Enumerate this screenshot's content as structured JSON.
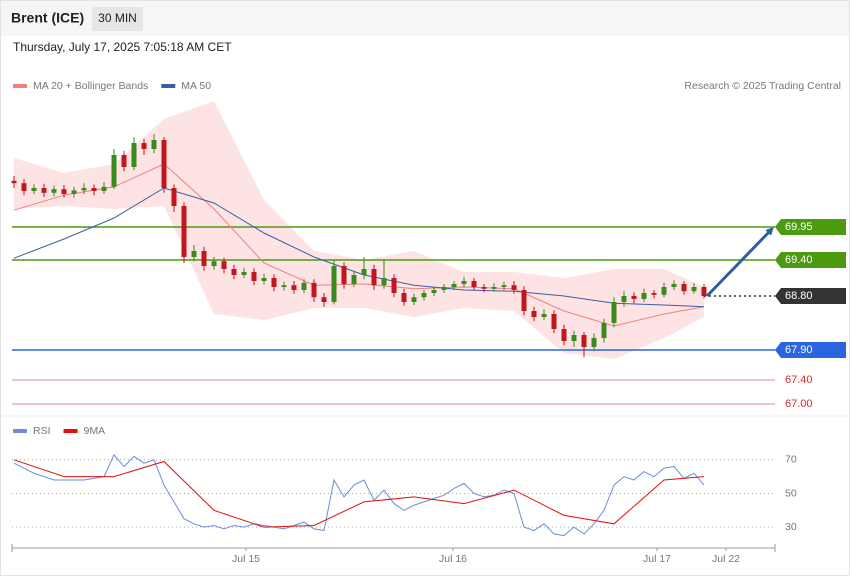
{
  "header": {
    "symbol": "Brent (ICE)",
    "interval": "30 MIN",
    "timestamp": "Thursday, July 17, 2025 7:05:18 AM CET",
    "credit": "Research © 2025 Trading Central"
  },
  "chart_data": [
    {
      "type": "candlestick",
      "xlim": [
        -0.2,
        76.1
      ],
      "ylim": [
        66.8,
        72.1
      ],
      "up_color": "#3a8a1e",
      "down_color": "#c0171e",
      "x": [
        0,
        1,
        2,
        3,
        4,
        5,
        6,
        7,
        8,
        9,
        10,
        11,
        12,
        13,
        14,
        15,
        16,
        17,
        18,
        19,
        20,
        21,
        22,
        23,
        24,
        25,
        26,
        27,
        28,
        29,
        30,
        31,
        32,
        33,
        34,
        35,
        36,
        37,
        38,
        39,
        40,
        41,
        42,
        43,
        44,
        45,
        46,
        47,
        48,
        49,
        50,
        51,
        52,
        53,
        54,
        55,
        56,
        57,
        58,
        59,
        60,
        61,
        62,
        63,
        64,
        65,
        66,
        67,
        68,
        69
      ],
      "open": [
        70.72,
        70.68,
        70.55,
        70.6,
        70.52,
        70.58,
        70.5,
        70.56,
        70.6,
        70.55,
        70.62,
        71.15,
        70.95,
        71.35,
        71.25,
        71.4,
        70.6,
        70.3,
        69.45,
        69.55,
        69.3,
        69.38,
        69.25,
        69.15,
        69.2,
        69.05,
        69.1,
        68.95,
        68.98,
        68.9,
        69.02,
        68.78,
        68.7,
        69.3,
        69.0,
        69.15,
        69.25,
        68.98,
        69.1,
        68.85,
        68.7,
        68.78,
        68.85,
        68.9,
        68.95,
        69.0,
        69.05,
        68.95,
        68.92,
        68.95,
        68.98,
        68.9,
        68.55,
        68.45,
        68.5,
        68.25,
        68.05,
        68.15,
        67.95,
        68.1,
        68.35,
        68.7,
        68.8,
        68.75,
        68.85,
        68.82,
        68.95,
        69.0,
        68.88,
        68.95
      ],
      "high": [
        70.8,
        70.75,
        70.66,
        70.67,
        70.64,
        70.65,
        70.62,
        70.68,
        70.66,
        70.7,
        71.25,
        71.22,
        71.45,
        71.42,
        71.5,
        71.45,
        70.66,
        70.36,
        69.65,
        69.62,
        69.45,
        69.44,
        69.32,
        69.27,
        69.26,
        69.17,
        69.16,
        69.04,
        69.05,
        69.08,
        69.08,
        68.85,
        69.4,
        69.36,
        69.22,
        69.45,
        69.32,
        69.4,
        69.16,
        68.92,
        68.84,
        68.9,
        68.95,
        69.0,
        69.05,
        69.12,
        69.1,
        69.0,
        69.01,
        69.04,
        69.05,
        68.96,
        68.62,
        68.58,
        68.56,
        68.32,
        68.22,
        68.2,
        68.18,
        68.42,
        68.78,
        68.88,
        68.86,
        68.92,
        68.9,
        69.02,
        69.06,
        69.05,
        69.02,
        69.0
      ],
      "low": [
        70.6,
        70.48,
        70.5,
        70.45,
        70.46,
        70.44,
        70.44,
        70.5,
        70.48,
        70.5,
        70.58,
        70.88,
        70.9,
        71.15,
        71.18,
        70.52,
        70.2,
        69.35,
        69.38,
        69.22,
        69.24,
        69.18,
        69.08,
        69.1,
        68.98,
        68.99,
        68.88,
        68.89,
        68.84,
        68.85,
        68.7,
        68.62,
        68.66,
        68.92,
        68.95,
        69.08,
        68.9,
        68.92,
        68.78,
        68.64,
        68.65,
        68.72,
        68.8,
        68.85,
        68.9,
        68.94,
        68.9,
        68.86,
        68.87,
        68.9,
        68.84,
        68.48,
        68.38,
        68.4,
        68.18,
        67.98,
        67.95,
        67.78,
        67.88,
        68.02,
        68.28,
        68.62,
        68.68,
        68.7,
        68.76,
        68.78,
        68.9,
        68.82,
        68.84,
        68.76
      ],
      "close": [
        70.68,
        70.55,
        70.6,
        70.52,
        70.58,
        70.5,
        70.56,
        70.6,
        70.55,
        70.62,
        71.15,
        70.95,
        71.35,
        71.25,
        71.4,
        70.6,
        70.3,
        69.45,
        69.55,
        69.3,
        69.38,
        69.25,
        69.15,
        69.2,
        69.05,
        69.1,
        68.95,
        68.98,
        68.9,
        69.02,
        68.78,
        68.7,
        69.3,
        69.0,
        69.15,
        69.25,
        68.98,
        69.1,
        68.85,
        68.7,
        68.78,
        68.85,
        68.9,
        68.95,
        69.0,
        69.05,
        68.95,
        68.92,
        68.95,
        68.98,
        68.9,
        68.55,
        68.45,
        68.5,
        68.25,
        68.05,
        68.15,
        67.95,
        68.1,
        68.35,
        68.7,
        68.8,
        68.75,
        68.85,
        68.82,
        68.95,
        69.0,
        68.88,
        68.95,
        68.8
      ],
      "series": [
        {
          "name": "MA 20 + Bollinger Bands",
          "color": "#f08080",
          "x": [
            0,
            5,
            10,
            15,
            20,
            25,
            30,
            35,
            40,
            45,
            50,
            55,
            60,
            65,
            69
          ],
          "values": [
            70.23,
            70.48,
            70.62,
            71.0,
            70.25,
            69.35,
            68.98,
            69.0,
            68.92,
            68.95,
            68.92,
            68.55,
            68.3,
            68.5,
            68.62
          ]
        },
        {
          "name": "MA 50",
          "color": "#3a5fa0",
          "x": [
            0,
            5,
            10,
            15,
            20,
            25,
            30,
            35,
            40,
            45,
            50,
            55,
            60,
            65,
            69
          ],
          "values": [
            69.43,
            69.75,
            70.1,
            70.6,
            70.35,
            69.85,
            69.45,
            69.15,
            68.98,
            68.9,
            68.88,
            68.8,
            68.68,
            68.65,
            68.62
          ]
        }
      ],
      "bands": {
        "color": "#fde3e3",
        "x": [
          0,
          5,
          10,
          15,
          20,
          25,
          30,
          35,
          40,
          45,
          50,
          55,
          60,
          65,
          69
        ],
        "upper": [
          71.1,
          70.85,
          71.0,
          71.75,
          72.05,
          70.4,
          69.55,
          69.4,
          69.55,
          69.2,
          69.2,
          69.1,
          69.25,
          69.25,
          68.95
        ],
        "lower": [
          70.25,
          70.3,
          70.25,
          70.3,
          68.5,
          68.4,
          68.6,
          68.6,
          68.45,
          68.6,
          68.55,
          67.85,
          67.75,
          68.1,
          68.45
        ]
      },
      "levels": [
        {
          "value": 69.95,
          "label": "69.95",
          "color": "#4c9a0f",
          "boxed": true,
          "style": "solid"
        },
        {
          "value": 69.4,
          "label": "69.40",
          "color": "#4c9a0f",
          "boxed": true,
          "style": "solid"
        },
        {
          "value": 68.8,
          "label": "68.80",
          "color": "#333333",
          "boxed": true,
          "style": "dotted"
        },
        {
          "value": 67.9,
          "label": "67.90",
          "color": "#2b66e0",
          "boxed": true,
          "style": "solid"
        },
        {
          "value": 67.4,
          "label": "67.40",
          "color": "#d03030",
          "boxed": false,
          "style": "solid"
        },
        {
          "value": 67.0,
          "label": "67.00",
          "color": "#d03030",
          "boxed": false,
          "style": "solid"
        }
      ]
    },
    {
      "type": "line",
      "xlim": [
        -0.2,
        76.1
      ],
      "ylim": [
        20,
        82
      ],
      "yticks": [
        70,
        50,
        30
      ],
      "xticks": [
        {
          "value": 23.2,
          "label": "Jul 15"
        },
        {
          "value": 43.9,
          "label": "Jul 16"
        },
        {
          "value": 64.3,
          "label": "Jul 17"
        },
        {
          "value": 71.2,
          "label": "Jul 22"
        }
      ],
      "series": [
        {
          "name": "RSI",
          "color": "#6a8fd8",
          "x": [
            0,
            1,
            2,
            3,
            4,
            5,
            6,
            7,
            8,
            9,
            10,
            11,
            12,
            13,
            14,
            15,
            16,
            17,
            18,
            19,
            20,
            21,
            22,
            23,
            24,
            25,
            26,
            27,
            28,
            29,
            30,
            31,
            32,
            33,
            34,
            35,
            36,
            37,
            38,
            39,
            40,
            41,
            42,
            43,
            44,
            45,
            46,
            47,
            48,
            49,
            50,
            51,
            52,
            53,
            54,
            55,
            56,
            57,
            58,
            59,
            60,
            61,
            62,
            63,
            64,
            65,
            66,
            67,
            68,
            69
          ],
          "values": [
            68,
            65,
            62,
            60,
            58,
            58,
            58,
            58,
            59,
            60,
            73,
            66,
            72,
            68,
            70,
            55,
            45,
            35,
            32,
            30,
            31,
            29,
            31,
            30,
            32,
            31,
            30,
            29,
            31,
            33,
            29,
            28,
            58,
            48,
            55,
            58,
            46,
            52,
            44,
            40,
            43,
            45,
            47,
            49,
            53,
            56,
            50,
            48,
            49,
            52,
            50,
            30,
            28,
            32,
            26,
            25,
            30,
            26,
            32,
            40,
            55,
            60,
            58,
            63,
            60,
            65,
            66,
            59,
            62,
            55
          ]
        },
        {
          "name": "9MA",
          "color": "#e01010",
          "x": [
            0,
            5,
            10,
            15,
            20,
            25,
            30,
            35,
            40,
            45,
            50,
            55,
            60,
            65,
            69
          ],
          "values": [
            70,
            60,
            60,
            69,
            40,
            30,
            31,
            45,
            48,
            44,
            52,
            37,
            32,
            58,
            60
          ]
        }
      ]
    }
  ]
}
